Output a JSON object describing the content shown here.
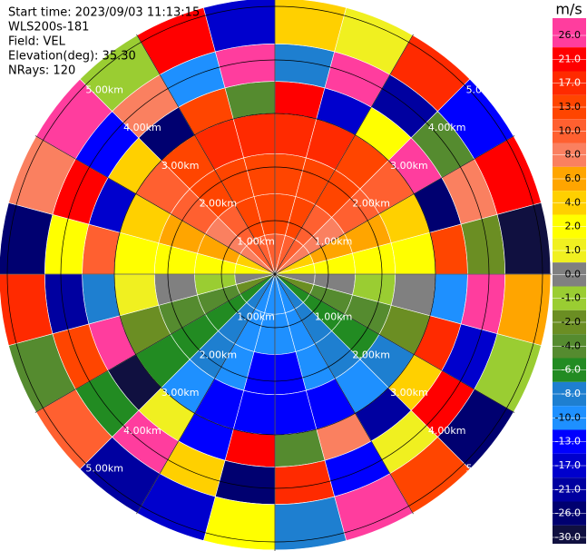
{
  "chart_data": {
    "type": "ppi",
    "header": [
      "Start time: 2023/09/03 11:13:15",
      "WLS200s-181",
      "Field: VEL",
      "Elevation(deg): 35.30",
      "NRays: 120"
    ],
    "colorbar_label": "m/s",
    "range_rings": [
      {
        "value": 1,
        "label": "1.00km"
      },
      {
        "value": 2,
        "label": "2.00km"
      },
      {
        "value": 3,
        "label": "3.00km"
      },
      {
        "value": 4,
        "label": "4.00km"
      },
      {
        "value": 5,
        "label": "5.00km"
      }
    ],
    "azimuth_bins": [
      0,
      15,
      30,
      45,
      60,
      75,
      90,
      105,
      120,
      135,
      150,
      165,
      180,
      195,
      210,
      225,
      240,
      255,
      270,
      285,
      300,
      315,
      330,
      345,
      360
    ],
    "range_bins_km": [
      0,
      0.75,
      1.5,
      2.25,
      3,
      3.6,
      4.3,
      5.15
    ],
    "values": [
      [
        12,
        13,
        15,
        17,
        21,
        -8,
        4
      ],
      [
        12,
        13,
        15,
        17,
        -17,
        26,
        1
      ],
      [
        10,
        11,
        13,
        13,
        2,
        -21,
        17
      ],
      [
        8,
        9,
        10,
        10,
        26,
        -4,
        -13
      ],
      [
        5,
        6,
        6,
        4,
        -26,
        8,
        21
      ],
      [
        2,
        3,
        3,
        2,
        13,
        -2,
        -30
      ],
      [
        0,
        0,
        -1,
        0,
        -10,
        26,
        6
      ],
      [
        -2,
        -3,
        -4,
        -2,
        17,
        -17,
        -1
      ],
      [
        -5,
        -6,
        -6,
        -8,
        4,
        21,
        -26
      ],
      [
        -7,
        -8,
        -8,
        -10,
        -21,
        1,
        13
      ],
      [
        -9,
        -10,
        -10,
        -13,
        8,
        -13,
        26
      ],
      [
        -9,
        -10,
        -13,
        -13,
        -4,
        17,
        -8
      ],
      [
        -9,
        -10,
        -13,
        -13,
        21,
        -26,
        2
      ],
      [
        -9,
        -10,
        -10,
        -13,
        -13,
        4,
        -17
      ],
      [
        -7,
        -8,
        -8,
        -10,
        1,
        26,
        -21
      ],
      [
        -5,
        -6,
        -6,
        -6,
        -30,
        -6,
        10
      ],
      [
        -2,
        -3,
        -4,
        -2,
        26,
        13,
        -4
      ],
      [
        0,
        -1,
        0,
        1,
        -8,
        -21,
        17
      ],
      [
        2,
        3,
        3,
        2,
        10,
        2,
        -26
      ],
      [
        5,
        6,
        6,
        4,
        -17,
        21,
        8
      ],
      [
        8,
        9,
        10,
        10,
        4,
        -13,
        26
      ],
      [
        10,
        11,
        13,
        13,
        -26,
        8,
        -1
      ],
      [
        12,
        13,
        15,
        17,
        13,
        -10,
        21
      ],
      [
        12,
        13,
        15,
        17,
        -4,
        26,
        -17
      ]
    ],
    "colorbar_ticks": [
      {
        "value": 26,
        "label": "26.0"
      },
      {
        "value": 21,
        "label": "21.0"
      },
      {
        "value": 17,
        "label": "17.0"
      },
      {
        "value": 13,
        "label": "13.0"
      },
      {
        "value": 10,
        "label": "10.0"
      },
      {
        "value": 8,
        "label": "8.0"
      },
      {
        "value": 6,
        "label": "6.0"
      },
      {
        "value": 4,
        "label": "4.0"
      },
      {
        "value": 2,
        "label": "2.0"
      },
      {
        "value": 1,
        "label": "1.0"
      },
      {
        "value": 0,
        "label": "0.0"
      },
      {
        "value": -1,
        "label": "-1.0"
      },
      {
        "value": -2,
        "label": "-2.0"
      },
      {
        "value": -4,
        "label": "-4.0"
      },
      {
        "value": -6,
        "label": "-6.0"
      },
      {
        "value": -8,
        "label": "-8.0"
      },
      {
        "value": -10,
        "label": "-10.0"
      },
      {
        "value": -13,
        "label": "-13.0"
      },
      {
        "value": -17,
        "label": "-17.0"
      },
      {
        "value": -21,
        "label": "-21.0"
      },
      {
        "value": -26,
        "label": "-26.0"
      },
      {
        "value": -30,
        "label": "-30.0"
      }
    ],
    "colors": [
      "#ff3d9e",
      "#ff0000",
      "#ff2a00",
      "#ff4500",
      "#ff6030",
      "#fa8060",
      "#ffa500",
      "#ffd000",
      "#ffff00",
      "#f0f020",
      "#808080",
      "#9acd32",
      "#6b8e23",
      "#558b2f",
      "#228b22",
      "#1e7fd0",
      "#1e90ff",
      "#0000ff",
      "#0000cd",
      "#0000a0",
      "#000070",
      "#101040"
    ]
  }
}
